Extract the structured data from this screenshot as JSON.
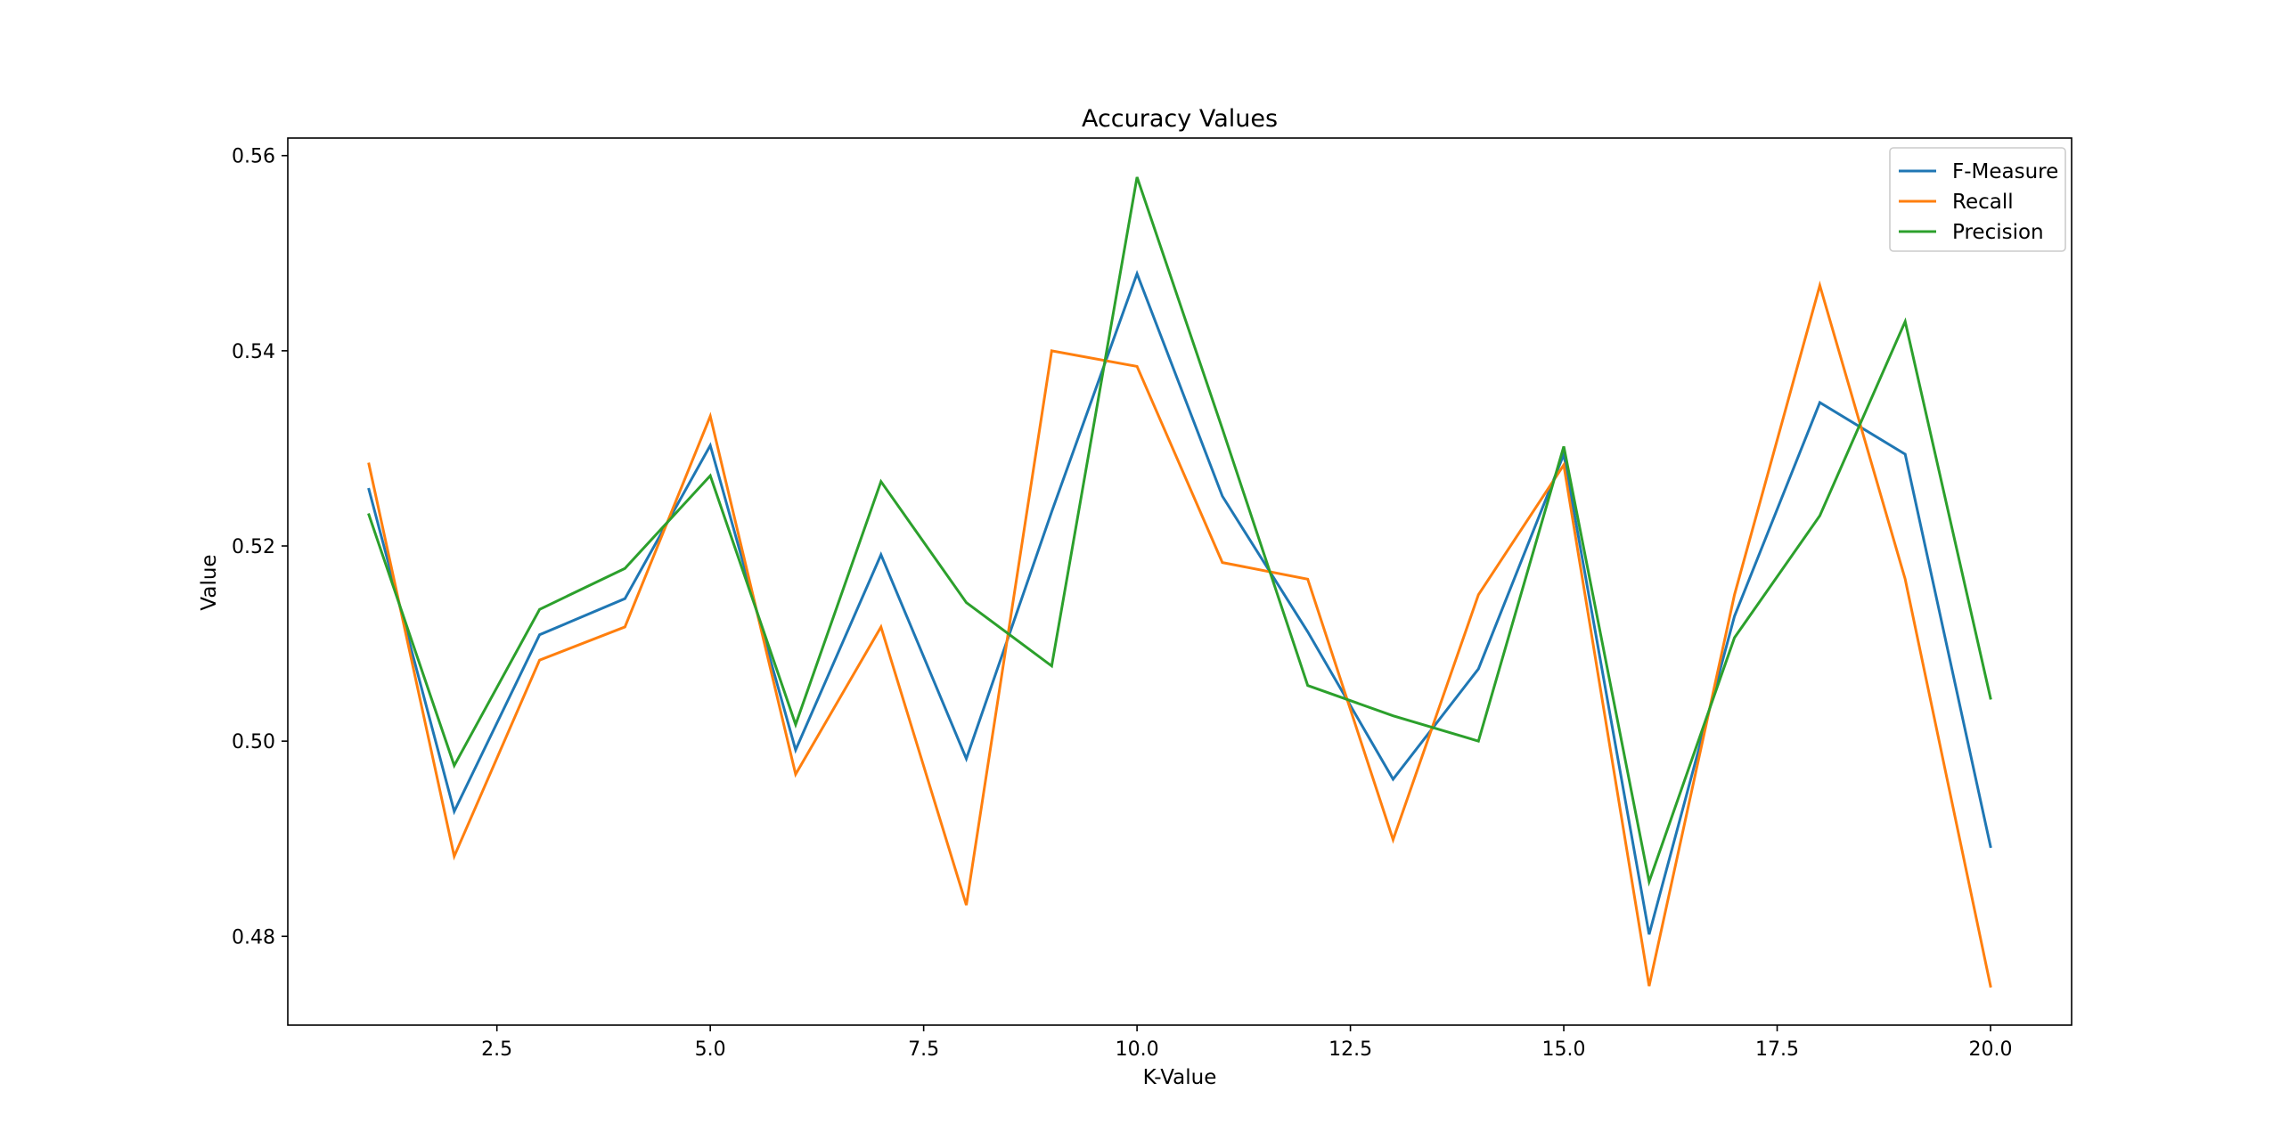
{
  "chart_data": {
    "type": "line",
    "title": "Accuracy Values",
    "xlabel": "K-Value",
    "ylabel": "Value",
    "xlim": [
      0.05,
      20.95
    ],
    "ylim": [
      0.4709,
      0.5618
    ],
    "x_ticks": [
      2.5,
      5.0,
      7.5,
      10.0,
      12.5,
      15.0,
      17.5,
      20.0
    ],
    "x_tick_labels": [
      "2.5",
      "5.0",
      "7.5",
      "10.0",
      "12.5",
      "15.0",
      "17.5",
      "20.0"
    ],
    "y_ticks": [
      0.48,
      0.5,
      0.52,
      0.54,
      0.56
    ],
    "y_tick_labels": [
      "0.48",
      "0.50",
      "0.52",
      "0.54",
      "0.56"
    ],
    "grid": false,
    "legend_position": "top-right",
    "x": [
      1,
      2,
      3,
      4,
      5,
      6,
      7,
      8,
      9,
      10,
      11,
      12,
      13,
      14,
      15,
      16,
      17,
      18,
      19,
      20
    ],
    "series": [
      {
        "name": "F-Measure",
        "color": "#1f77b4",
        "values": [
          0.5258,
          0.4928,
          0.5109,
          0.5146,
          0.5303,
          0.4991,
          0.5191,
          0.4982,
          0.5235,
          0.5479,
          0.5251,
          0.5112,
          0.4961,
          0.5074,
          0.5294,
          0.4802,
          0.5128,
          0.5347,
          0.5294,
          0.4892
        ]
      },
      {
        "name": "Recall",
        "color": "#ff7f0e",
        "values": [
          0.5284,
          0.4882,
          0.5083,
          0.5117,
          0.5333,
          0.4966,
          0.5117,
          0.4832,
          0.54,
          0.5384,
          0.5183,
          0.5166,
          0.4899,
          0.515,
          0.5283,
          0.4749,
          0.515,
          0.5467,
          0.5166,
          0.4749
        ]
      },
      {
        "name": "Precision",
        "color": "#2ca02c",
        "values": [
          0.5232,
          0.4975,
          0.5135,
          0.5177,
          0.5272,
          0.5017,
          0.5266,
          0.5142,
          0.5077,
          0.5578,
          0.532,
          0.5057,
          0.5026,
          0.5,
          0.5302,
          0.4856,
          0.5106,
          0.5231,
          0.543,
          0.5044
        ]
      }
    ]
  }
}
